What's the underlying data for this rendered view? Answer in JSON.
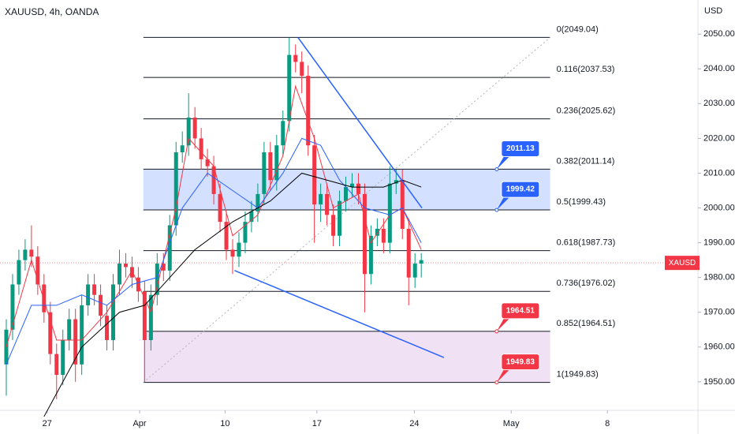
{
  "chart_data": {
    "type": "candlestick",
    "title": "XAUUSD, 4h, OANDA",
    "axis_unit": "USD",
    "up_color": "#089981",
    "down_color": "#f23645",
    "xlim": [
      -1,
      110
    ],
    "ylim": [
      1941.8,
      2059.8
    ],
    "grid": false,
    "xticks": [
      {
        "value": 6.5,
        "label": "27"
      },
      {
        "value": 21.2,
        "label": "Apr"
      },
      {
        "value": 34.8,
        "label": "10"
      },
      {
        "value": 49.4,
        "label": "17"
      },
      {
        "value": 64.9,
        "label": "24"
      },
      {
        "value": 80.3,
        "label": "May"
      },
      {
        "value": 95.6,
        "label": "8"
      }
    ],
    "yticks": [
      {
        "value": 1950,
        "label": "1950.00"
      },
      {
        "value": 1960,
        "label": "1960.00"
      },
      {
        "value": 1970,
        "label": "1970.00"
      },
      {
        "value": 1980,
        "label": "1980.00"
      },
      {
        "value": 1990,
        "label": "1990.00"
      },
      {
        "value": 2000,
        "label": "2000.00"
      },
      {
        "value": 2010,
        "label": "2010.00"
      },
      {
        "value": 2020,
        "label": "2020.00"
      },
      {
        "value": 2030,
        "label": "2030.00"
      },
      {
        "value": 2040,
        "label": "2040.00"
      },
      {
        "value": 2050,
        "label": "2050.00"
      }
    ],
    "open": [
      1955,
      1965,
      1978,
      1985,
      1988,
      1986,
      1978,
      1970,
      1958,
      1952,
      1962,
      1968,
      1955,
      1972,
      1978,
      1975,
      1969,
      1962,
      1978,
      1984,
      1983,
      1980,
      1976,
      1962,
      1975,
      1984,
      1982,
      1995,
      2016,
      2018,
      2026,
      2020,
      2014,
      2012,
      2004,
      1996,
      1988,
      1986,
      1990,
      1996,
      1999,
      2004,
      2016,
      2008,
      2018,
      2025,
      2044,
      2042,
      2038,
      2018,
      2001,
      2004,
      1998,
      1992,
      2002,
      2006,
      2007,
      2004,
      1981,
      1992,
      1994,
      1990,
      2007,
      2008,
      1994,
      1980,
      1984
    ],
    "high": [
      1968,
      1981,
      1988,
      1991,
      1995,
      1989,
      1981,
      1973,
      1961,
      1965,
      1971,
      1971,
      1975,
      1981,
      1981,
      1978,
      1972,
      1981,
      1988,
      1987,
      1986,
      1983,
      1979,
      1978,
      1987,
      1987,
      1998,
      2019,
      2022,
      2033,
      2029,
      2023,
      2017,
      2015,
      2007,
      1999,
      1991,
      1993,
      1999,
      2002,
      2007,
      2019,
      2019,
      2021,
      2028,
      2049,
      2047,
      2045,
      2041,
      2021,
      2007,
      2007,
      2001,
      2005,
      2009,
      2010,
      2010,
      2007,
      1995,
      1997,
      1997,
      2012,
      2011,
      2011,
      1997,
      1987,
      1987
    ],
    "low": [
      1946,
      1962,
      1975,
      1982,
      1983,
      1975,
      1967,
      1955,
      1945,
      1949,
      1959,
      1950,
      1952,
      1969,
      1972,
      1966,
      1959,
      1959,
      1975,
      1980,
      1977,
      1973,
      1950,
      1959,
      1972,
      1979,
      1979,
      1992,
      2013,
      2015,
      2017,
      2011,
      2009,
      2001,
      1993,
      1985,
      1981,
      1983,
      1987,
      1993,
      1996,
      2001,
      2005,
      2005,
      2015,
      2022,
      2039,
      2033,
      2015,
      1990,
      1996,
      1995,
      1989,
      1989,
      1999,
      2003,
      2001,
      1970,
      1978,
      1989,
      1987,
      1987,
      2004,
      1991,
      1972,
      1977,
      1980
    ],
    "close": [
      1965,
      1978,
      1985,
      1988,
      1986,
      1978,
      1970,
      1958,
      1952,
      1962,
      1968,
      1955,
      1972,
      1978,
      1975,
      1969,
      1962,
      1978,
      1984,
      1983,
      1980,
      1976,
      1962,
      1975,
      1984,
      1982,
      1995,
      2016,
      2018,
      2026,
      2020,
      2014,
      2012,
      2004,
      1996,
      1988,
      1986,
      1990,
      1996,
      1999,
      2004,
      2016,
      2008,
      2018,
      2025,
      2044,
      2042,
      2038,
      2018,
      2001,
      2004,
      1998,
      1992,
      2002,
      2006,
      2007,
      2004,
      1981,
      1992,
      1994,
      1990,
      2007,
      2008,
      1994,
      1980,
      1984,
      1985
    ],
    "moving_averages": [
      {
        "color": "#f23645",
        "x": [
          0,
          4,
          8,
          12,
          16,
          20,
          23,
          27,
          29,
          33,
          36,
          40,
          44,
          46,
          49,
          52,
          56,
          58,
          61,
          63,
          66
        ],
        "values": [
          1960,
          1985,
          1962,
          1962,
          1970,
          1982,
          1970,
          2000,
          2020,
          2012,
          1992,
          1998,
          2015,
          2035,
          2020,
          2000,
          2004,
          1990,
          1998,
          2000,
          1988
        ]
      },
      {
        "color": "#2962ff",
        "x": [
          0,
          4,
          8,
          12,
          16,
          20,
          24,
          28,
          32,
          36,
          40,
          44,
          47,
          50,
          53,
          57,
          61,
          63,
          66
        ],
        "values": [
          1955,
          1972,
          1972,
          1975,
          1972,
          1978,
          1980,
          2000,
          2010,
          2005,
          2000,
          2010,
          2020,
          2018,
          2008,
          2000,
          1998,
          2000,
          1990
        ]
      },
      {
        "color": "#000000",
        "x": [
          6,
          12,
          18,
          22,
          26,
          30,
          36,
          42,
          47,
          51,
          55,
          60,
          63,
          66
        ],
        "values": [
          1940,
          1960,
          1970,
          1972,
          1980,
          1988,
          1996,
          2002,
          2010,
          2008,
          2006,
          2006,
          2008,
          2006
        ]
      }
    ],
    "fib_x": [
      21.8,
      86.5
    ],
    "fib_levels": [
      {
        "value": 2049.04,
        "label": "0(2049.04)"
      },
      {
        "value": 2037.53,
        "label": "0.116(2037.53)"
      },
      {
        "value": 2025.62,
        "label": "0.236(2025.62)"
      },
      {
        "value": 2011.14,
        "label": "0.382(2011.14)"
      },
      {
        "value": 1999.43,
        "label": "0.5(1999.43)"
      },
      {
        "value": 1987.73,
        "label": "0.618(1987.73)"
      },
      {
        "value": 1976.02,
        "label": "0.736(1976.02)"
      },
      {
        "value": 1964.51,
        "label": "0.852(1964.51)"
      },
      {
        "value": 1949.83,
        "label": "1(1949.83)"
      }
    ],
    "zones": [
      {
        "from": 1999.43,
        "to": 2011.14,
        "color": "#2962ff"
      },
      {
        "from": 1949.83,
        "to": 1964.51,
        "color": "#ba68c8"
      }
    ],
    "trendlines": [
      {
        "color": "#2962ff",
        "x": [
          46.4,
          66.1
        ],
        "values": [
          2049,
          2000
        ]
      },
      {
        "color": "#2962ff",
        "x": [
          36.3,
          69.6
        ],
        "values": [
          1982,
          1957
        ]
      }
    ],
    "diagonal": {
      "x": [
        21.8,
        86.5
      ],
      "values": [
        1949.83,
        2049.04
      ]
    },
    "callouts": [
      {
        "value": 2011.13,
        "label": "2011.13",
        "color": "#2962ff"
      },
      {
        "value": 1999.42,
        "label": "1999.42",
        "color": "#2962ff"
      },
      {
        "value": 1964.51,
        "label": "1964.51",
        "color": "#f23645"
      },
      {
        "value": 1949.83,
        "label": "1949.83",
        "color": "#f23645"
      }
    ],
    "callout_x": 78,
    "price_tag": {
      "value": 1984.2,
      "label": "XAUSD",
      "color": "#f23645"
    }
  }
}
